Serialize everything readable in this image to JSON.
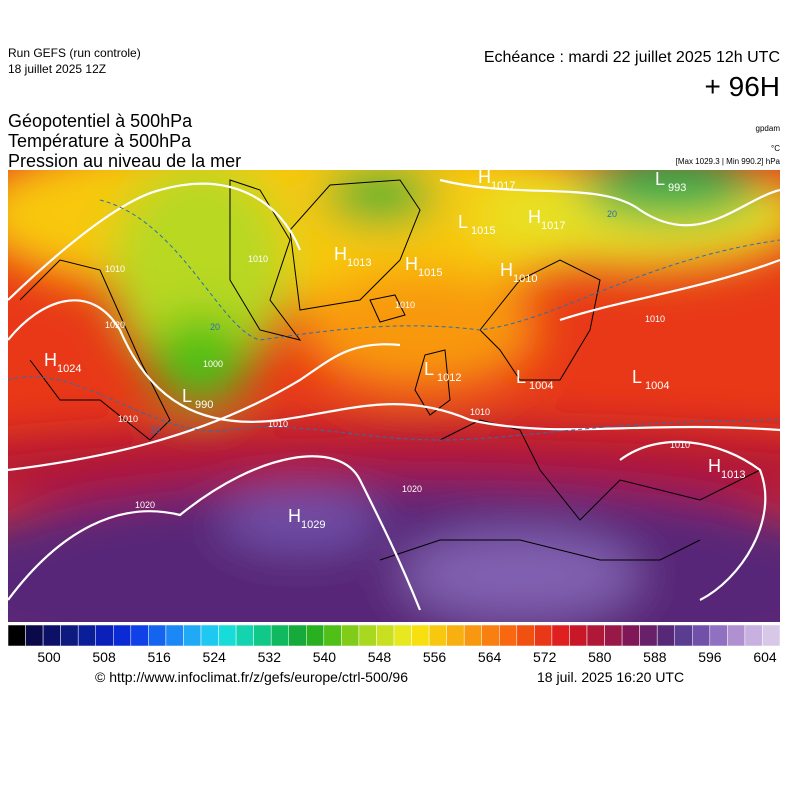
{
  "header": {
    "run": "Run GEFS (run controle)",
    "run_date": "18 juillet 2025 12Z",
    "valid": "Echéance : mardi 22 juillet 2025 12h UTC",
    "lead": "+ 96H"
  },
  "titles": [
    "Géopotentiel à 500hPa",
    "Température à 500hPa",
    "Pression au niveau de la mer"
  ],
  "units": {
    "geopotential": "gpdam",
    "temperature": "°C",
    "pressure": "[Max 1029.3 | Min 990.2] hPa"
  },
  "centers": [
    {
      "letter": "H",
      "value": "1017"
    },
    {
      "letter": "L",
      "value": "1015"
    },
    {
      "letter": "H",
      "value": "1017"
    },
    {
      "letter": "H",
      "value": "1013"
    },
    {
      "letter": "H",
      "value": "1015"
    },
    {
      "letter": "H",
      "value": "1010"
    },
    {
      "letter": "L",
      "value": "993"
    },
    {
      "letter": "H",
      "value": "1024"
    },
    {
      "letter": "L",
      "value": "990"
    },
    {
      "letter": "L",
      "value": "1012"
    },
    {
      "letter": "L",
      "value": "1004"
    },
    {
      "letter": "L",
      "value": "1004"
    },
    {
      "letter": "H",
      "value": "1013"
    },
    {
      "letter": "H",
      "value": "1029"
    }
  ],
  "contour_labels": [
    "1010",
    "1010",
    "1020",
    "1000",
    "1010",
    "1010",
    "1020",
    "1010",
    "1010",
    "1010",
    "1010",
    "1020",
    "20",
    "10",
    "20"
  ],
  "colorbar": {
    "colors": [
      "#000000",
      "#0a0a4a",
      "#0c1066",
      "#0d1a80",
      "#0a1e9a",
      "#0a20b8",
      "#0a2ad6",
      "#0f40e8",
      "#1464f0",
      "#1c88f5",
      "#20aaf5",
      "#1fc8f0",
      "#18dcd8",
      "#14d4b0",
      "#10c888",
      "#10b860",
      "#16aa3a",
      "#28b020",
      "#50c018",
      "#80cc18",
      "#a8d820",
      "#c8e020",
      "#e8e820",
      "#f8e010",
      "#f8c810",
      "#f8b010",
      "#f89810",
      "#f88010",
      "#f86810",
      "#f05010",
      "#e83818",
      "#e02020",
      "#c81828",
      "#b01838",
      "#981848",
      "#801858",
      "#682068",
      "#582878",
      "#5a3c90",
      "#7050a8",
      "#9070c0",
      "#b090d0",
      "#c8b0e0",
      "#d8c8e8"
    ],
    "range": [
      500,
      604
    ],
    "ticks": [
      500,
      508,
      516,
      524,
      532,
      540,
      548,
      556,
      564,
      572,
      580,
      588,
      596,
      604
    ]
  },
  "footer": {
    "url": "© http://www.infoclimat.fr/z/gefs/europe/ctrl-500/96",
    "timestamp": "18 juil. 2025 16:20 UTC"
  }
}
